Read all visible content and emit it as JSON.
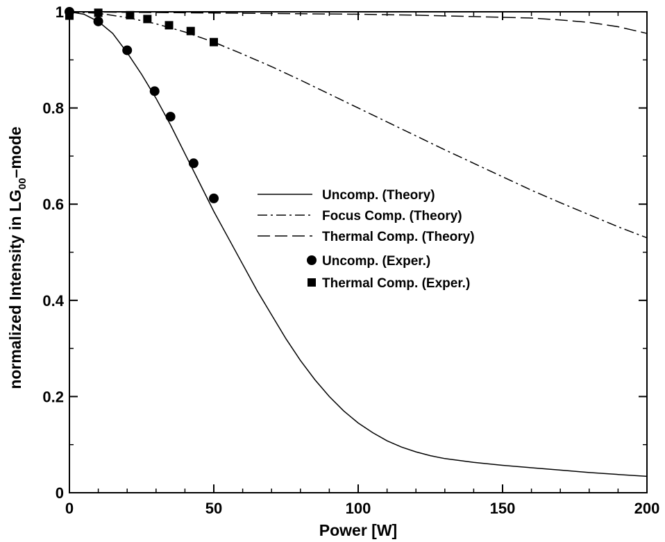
{
  "chart_data": {
    "type": "line",
    "xlabel": "Power [W]",
    "ylabel": {
      "prefix": "normalized Intensity in LG",
      "subscript": "00",
      "suffix": "–mode"
    },
    "xlim": [
      0,
      200
    ],
    "ylim": [
      0,
      1
    ],
    "x_ticks": [
      0,
      50,
      100,
      150,
      200
    ],
    "y_ticks": [
      0,
      0.2,
      0.4,
      0.6,
      0.8,
      1
    ],
    "y_tick_labels": [
      "0",
      "0.2",
      "0.4",
      "0.6",
      "0.8",
      "1"
    ],
    "grid": false,
    "legend_position": "center-right",
    "series": [
      {
        "name": "Uncomp. (Theory)",
        "kind": "line",
        "dash": "solid",
        "x": [
          0,
          5,
          10,
          15,
          20,
          25,
          30,
          35,
          40,
          45,
          50,
          55,
          60,
          65,
          70,
          75,
          80,
          85,
          90,
          95,
          100,
          105,
          110,
          115,
          120,
          125,
          130,
          140,
          150,
          160,
          170,
          180,
          190,
          200
        ],
        "y": [
          1.0,
          0.995,
          0.98,
          0.955,
          0.915,
          0.87,
          0.82,
          0.765,
          0.705,
          0.645,
          0.585,
          0.53,
          0.475,
          0.42,
          0.37,
          0.32,
          0.275,
          0.235,
          0.2,
          0.17,
          0.145,
          0.125,
          0.108,
          0.095,
          0.085,
          0.077,
          0.071,
          0.063,
          0.057,
          0.052,
          0.047,
          0.042,
          0.038,
          0.034
        ]
      },
      {
        "name": "Focus Comp. (Theory)",
        "kind": "line",
        "dash": "dashdot",
        "x": [
          0,
          10,
          20,
          30,
          40,
          50,
          60,
          70,
          80,
          90,
          100,
          110,
          120,
          130,
          140,
          150,
          160,
          170,
          180,
          190,
          200
        ],
        "y": [
          1.0,
          0.997,
          0.988,
          0.975,
          0.958,
          0.937,
          0.912,
          0.886,
          0.858,
          0.829,
          0.8,
          0.771,
          0.742,
          0.713,
          0.685,
          0.657,
          0.629,
          0.603,
          0.578,
          0.553,
          0.53
        ]
      },
      {
        "name": "Thermal Comp. (Theory)",
        "kind": "line",
        "dash": "dashed",
        "x": [
          0,
          20,
          40,
          60,
          80,
          100,
          120,
          140,
          160,
          170,
          180,
          190,
          195,
          200
        ],
        "y": [
          1.0,
          0.999,
          0.998,
          0.997,
          0.996,
          0.995,
          0.993,
          0.99,
          0.987,
          0.983,
          0.978,
          0.969,
          0.962,
          0.955
        ]
      },
      {
        "name": "Uncomp.  (Exper.)",
        "kind": "scatter",
        "marker": "circle",
        "x": [
          0,
          10,
          20,
          29.5,
          35,
          43,
          50
        ],
        "y": [
          1.0,
          0.98,
          0.92,
          0.835,
          0.782,
          0.685,
          0.612
        ]
      },
      {
        "name": "Thermal Comp. (Exper.)",
        "kind": "scatter",
        "marker": "square",
        "x": [
          0,
          10,
          21,
          27,
          34.5,
          42,
          50
        ],
        "y": [
          0.992,
          0.998,
          0.993,
          0.985,
          0.972,
          0.96,
          0.937
        ]
      }
    ]
  }
}
